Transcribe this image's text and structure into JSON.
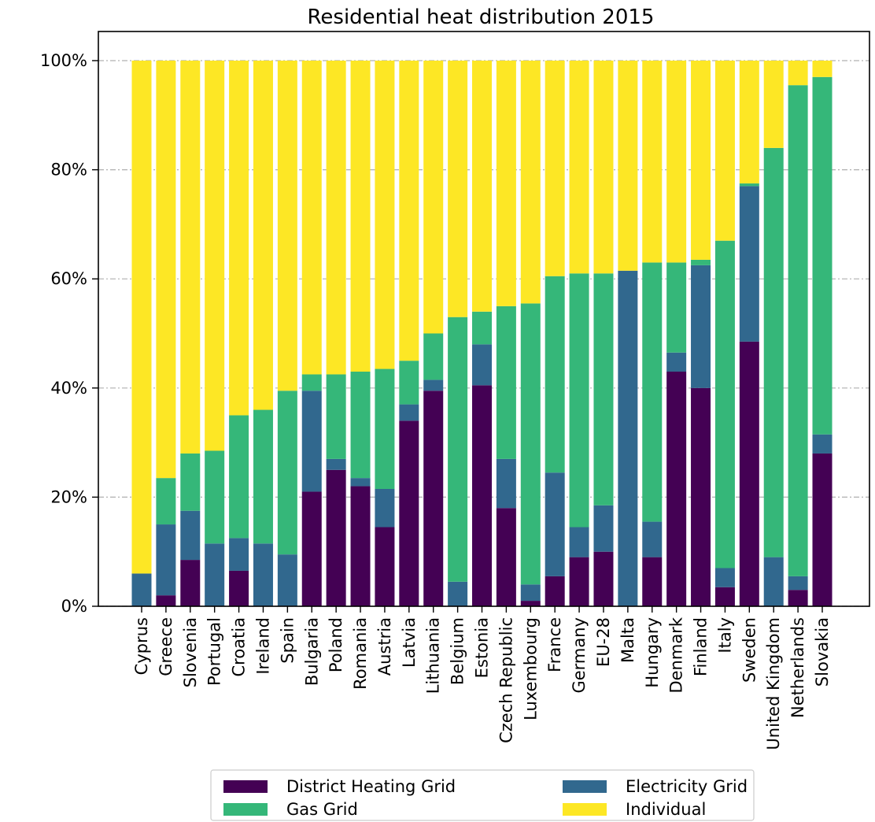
{
  "chart_data": {
    "type": "bar",
    "stacked": true,
    "title": "Residential heat distribution 2015",
    "xlabel": "",
    "ylabel": "",
    "ylim": [
      0,
      100
    ],
    "yticks": [
      0,
      20,
      40,
      60,
      80,
      100
    ],
    "ytick_labels": [
      "0%",
      "20%",
      "40%",
      "60%",
      "80%",
      "100%"
    ],
    "grid": true,
    "legend_position": "bottom",
    "categories": [
      "Cyprus",
      "Greece",
      "Slovenia",
      "Portugal",
      "Croatia",
      "Ireland",
      "Spain",
      "Bulgaria",
      "Poland",
      "Romania",
      "Austria",
      "Latvia",
      "Lithuania",
      "Belgium",
      "Estonia",
      "Czech Republic",
      "Luxembourg",
      "France",
      "Germany",
      "EU-28",
      "Malta",
      "Hungary",
      "Denmark",
      "Finland",
      "Italy",
      "Sweden",
      "United Kingdom",
      "Netherlands",
      "Slovakia"
    ],
    "series": [
      {
        "name": "District Heating Grid",
        "color": "#440154",
        "values": [
          0,
          2,
          8.5,
          0,
          6.5,
          0,
          0,
          21,
          25,
          22,
          14.5,
          34,
          39.5,
          0,
          40.5,
          18,
          1,
          5.5,
          9,
          10,
          0,
          9,
          43,
          40,
          3.5,
          48.5,
          0,
          3,
          28
        ]
      },
      {
        "name": "Electricity Grid",
        "color": "#31688e",
        "values": [
          6,
          13,
          9,
          11.5,
          6,
          11.5,
          9.5,
          18.5,
          2,
          1.5,
          7,
          3,
          2,
          4.5,
          7.5,
          9,
          3,
          19,
          5.5,
          8.5,
          61.5,
          6.5,
          3.5,
          22.5,
          3.5,
          28.5,
          9,
          2.5,
          3.5
        ]
      },
      {
        "name": "Gas Grid",
        "color": "#35b779",
        "values": [
          0,
          8.5,
          10.5,
          17,
          22.5,
          24.5,
          30,
          3,
          15.5,
          19.5,
          22,
          8,
          8.5,
          48.5,
          6,
          28,
          51.5,
          36,
          46.5,
          42.5,
          0,
          47.5,
          16.5,
          1,
          60,
          0.5,
          75,
          90,
          65.5
        ]
      },
      {
        "name": "Individual",
        "color": "#fde725",
        "values": [
          94,
          76.5,
          72,
          71.5,
          65,
          64,
          60.5,
          57.5,
          57.5,
          57,
          56.5,
          55,
          50,
          47,
          46,
          45,
          44.5,
          39.5,
          39,
          39,
          38.5,
          37,
          37,
          36.5,
          33,
          22.5,
          16,
          4.5,
          3
        ]
      }
    ]
  }
}
